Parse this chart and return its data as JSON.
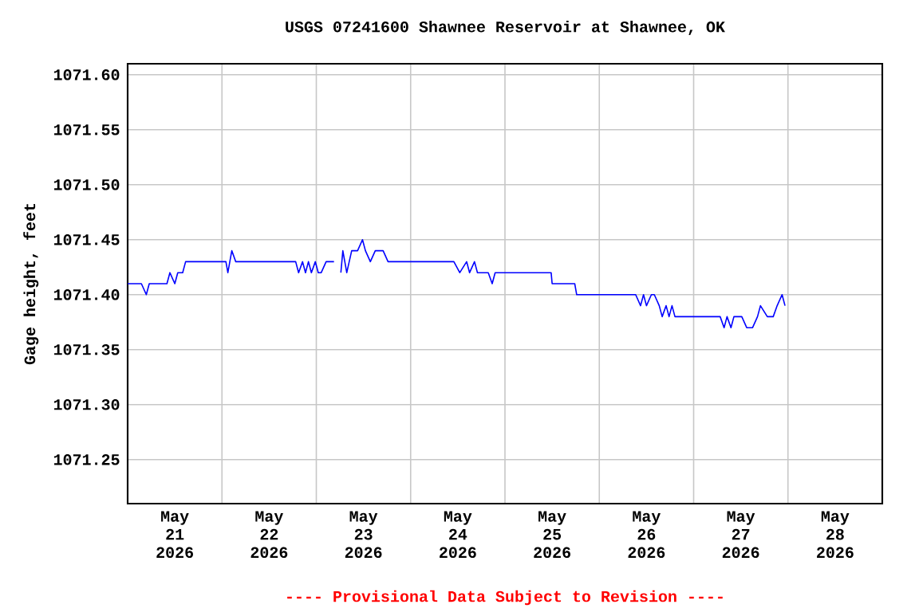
{
  "chart_data": {
    "type": "line",
    "title": "USGS 07241600 Shawnee Reservoir at Shawnee, OK",
    "ylabel": "Gage height, feet",
    "annotations": [
      "---- Provisional Data Subject to Revision ----"
    ],
    "xlim": [
      "2026-05-21",
      "2026-05-29"
    ],
    "ylim": [
      1071.21,
      1071.61
    ],
    "xticks": [
      {
        "value": "2026-05-21T12:00",
        "label": "May 21 2026"
      },
      {
        "value": "2026-05-22",
        "label": null
      },
      {
        "value": "2026-05-22T12:00",
        "label": "May 22 2026"
      },
      {
        "value": "2026-05-23",
        "label": null
      },
      {
        "value": "2026-05-23T12:00",
        "label": "May 23 2026"
      },
      {
        "value": "2026-05-24",
        "label": null
      },
      {
        "value": "2026-05-24T12:00",
        "label": "May 24 2026"
      },
      {
        "value": "2026-05-25",
        "label": null
      },
      {
        "value": "2026-05-25T12:00",
        "label": "May 25 2026"
      },
      {
        "value": "2026-05-26",
        "label": null
      },
      {
        "value": "2026-05-26T12:00",
        "label": "May 26 2026"
      },
      {
        "value": "2026-05-27",
        "label": null
      },
      {
        "value": "2026-05-27T12:00",
        "label": "May 27 2026"
      },
      {
        "value": "2026-05-28",
        "label": null
      },
      {
        "value": "2026-05-28T12:00",
        "label": "May 28 2026"
      }
    ],
    "yticks": [
      {
        "value": 1071.25,
        "label": "1071.25"
      },
      {
        "value": 1071.3,
        "label": "1071.30"
      },
      {
        "value": 1071.35,
        "label": "1071.35"
      },
      {
        "value": 1071.4,
        "label": "1071.40"
      },
      {
        "value": 1071.45,
        "label": "1071.45"
      },
      {
        "value": 1071.5,
        "label": "1071.50"
      },
      {
        "value": 1071.55,
        "label": "1071.55"
      },
      {
        "value": 1071.6,
        "label": "1071.60"
      }
    ],
    "grid": true,
    "series": [
      {
        "color": "#0000ff",
        "x": [
          "2026-05-21T00:00",
          "2026-05-21T03:30",
          "2026-05-21T04:45",
          "2026-05-21T05:30",
          "2026-05-21T10:00",
          "2026-05-21T10:45",
          "2026-05-21T12:00",
          "2026-05-21T12:45",
          "2026-05-21T14:00",
          "2026-05-21T14:45",
          "2026-05-22T01:00",
          "2026-05-22T01:30",
          "2026-05-22T02:30",
          "2026-05-22T03:30",
          "2026-05-22T18:45",
          "2026-05-22T19:30",
          "2026-05-22T20:30",
          "2026-05-22T21:15",
          "2026-05-22T22:00",
          "2026-05-22T22:45",
          "2026-05-22T23:45",
          "2026-05-23T00:30",
          "2026-05-23T01:15",
          "2026-05-23T02:30",
          "2026-05-23T04:30",
          "2026-05-23T05:30",
          "2026-05-23T06:15",
          "2026-05-23T06:45",
          "2026-05-23T07:45",
          "2026-05-23T09:00",
          "2026-05-23T10:30",
          "2026-05-23T11:45",
          "2026-05-23T12:30",
          "2026-05-23T13:45",
          "2026-05-23T15:00",
          "2026-05-23T17:00",
          "2026-05-23T18:15",
          "2026-05-24T11:00",
          "2026-05-24T12:30",
          "2026-05-24T14:15",
          "2026-05-24T15:00",
          "2026-05-24T16:15",
          "2026-05-24T17:00",
          "2026-05-24T19:45",
          "2026-05-24T20:45",
          "2026-05-24T21:30",
          "2026-05-25T11:45",
          "2026-05-25T12:00",
          "2026-05-25T17:45",
          "2026-05-25T18:15",
          "2026-05-26T09:15",
          "2026-05-26T10:30",
          "2026-05-26T11:15",
          "2026-05-26T12:00",
          "2026-05-26T13:15",
          "2026-05-26T14:00",
          "2026-05-26T15:15",
          "2026-05-26T16:00",
          "2026-05-26T17:00",
          "2026-05-26T17:45",
          "2026-05-26T18:30",
          "2026-05-26T19:15",
          "2026-05-27T06:45",
          "2026-05-27T07:45",
          "2026-05-27T08:30",
          "2026-05-27T09:30",
          "2026-05-27T10:15",
          "2026-05-27T12:15",
          "2026-05-27T13:30",
          "2026-05-27T15:00",
          "2026-05-27T16:15",
          "2026-05-27T17:00",
          "2026-05-27T18:45",
          "2026-05-27T20:15",
          "2026-05-27T21:15",
          "2026-05-27T22:30",
          "2026-05-27T23:15"
        ],
        "values": [
          1071.41,
          1071.41,
          1071.4,
          1071.41,
          1071.41,
          1071.42,
          1071.41,
          1071.42,
          1071.42,
          1071.43,
          1071.43,
          1071.42,
          1071.44,
          1071.43,
          1071.43,
          1071.42,
          1071.43,
          1071.42,
          1071.43,
          1071.42,
          1071.43,
          1071.42,
          1071.42,
          1071.43,
          1071.43,
          null,
          1071.42,
          1071.44,
          1071.42,
          1071.44,
          1071.44,
          1071.45,
          1071.44,
          1071.43,
          1071.44,
          1071.44,
          1071.43,
          1071.43,
          1071.42,
          1071.43,
          1071.42,
          1071.43,
          1071.42,
          1071.42,
          1071.41,
          1071.42,
          1071.42,
          1071.41,
          1071.41,
          1071.4,
          1071.4,
          1071.39,
          1071.4,
          1071.39,
          1071.4,
          1071.4,
          1071.39,
          1071.38,
          1071.39,
          1071.38,
          1071.39,
          1071.38,
          1071.38,
          1071.37,
          1071.38,
          1071.37,
          1071.38,
          1071.38,
          1071.37,
          1071.37,
          1071.38,
          1071.39,
          1071.38,
          1071.38,
          1071.39,
          1071.4,
          1071.39
        ]
      }
    ]
  }
}
